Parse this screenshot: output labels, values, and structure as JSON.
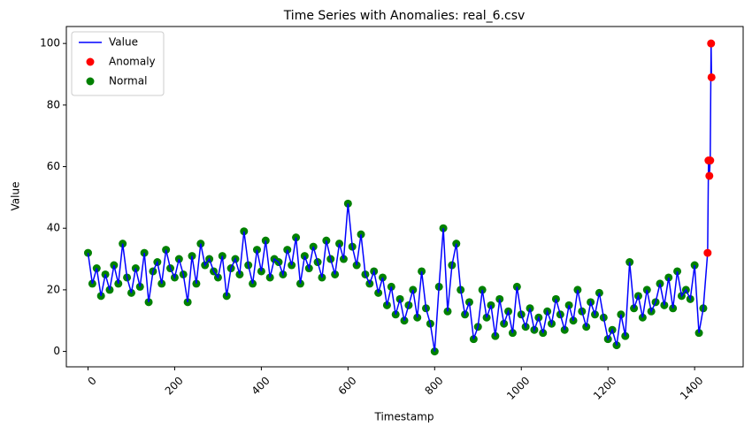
{
  "chart_data": {
    "type": "line",
    "title": "Time Series with Anomalies: real_6.csv",
    "x_label": "Timestamp",
    "y_label": "Value",
    "xlim": [
      -50,
      1512
    ],
    "ylim": [
      -5,
      105.5
    ],
    "xticks": [
      0,
      200,
      400,
      600,
      800,
      1000,
      1200,
      1400
    ],
    "yticks": [
      0,
      20,
      40,
      60,
      80,
      100
    ],
    "legend": "upper left",
    "series": [
      {
        "name": "Value",
        "type": "line",
        "color": "#0000ff",
        "x": [
          0,
          10,
          20,
          30,
          40,
          50,
          60,
          70,
          80,
          90,
          100,
          110,
          120,
          130,
          140,
          150,
          160,
          170,
          180,
          190,
          200,
          210,
          220,
          230,
          240,
          250,
          260,
          270,
          280,
          290,
          300,
          310,
          320,
          330,
          340,
          350,
          360,
          370,
          380,
          390,
          400,
          410,
          420,
          430,
          440,
          450,
          460,
          470,
          480,
          490,
          500,
          510,
          520,
          530,
          540,
          550,
          560,
          570,
          580,
          590,
          600,
          610,
          620,
          630,
          640,
          650,
          660,
          670,
          680,
          690,
          700,
          710,
          720,
          730,
          740,
          750,
          760,
          770,
          780,
          790,
          800,
          810,
          820,
          830,
          840,
          850,
          860,
          870,
          880,
          890,
          900,
          910,
          920,
          930,
          940,
          950,
          960,
          970,
          980,
          990,
          1000,
          1010,
          1020,
          1030,
          1040,
          1050,
          1060,
          1070,
          1080,
          1090,
          1100,
          1110,
          1120,
          1130,
          1140,
          1150,
          1160,
          1170,
          1180,
          1190,
          1200,
          1210,
          1220,
          1230,
          1240,
          1250,
          1260,
          1270,
          1280,
          1290,
          1300,
          1310,
          1320,
          1330,
          1340,
          1350,
          1360,
          1370,
          1380,
          1390,
          1400,
          1410,
          1420,
          1430,
          1432,
          1434,
          1436,
          1438,
          1439
        ],
        "values": [
          32,
          22,
          27,
          18,
          25,
          20,
          28,
          22,
          35,
          24,
          19,
          27,
          21,
          32,
          16,
          26,
          29,
          22,
          33,
          27,
          24,
          30,
          25,
          16,
          31,
          22,
          35,
          28,
          30,
          26,
          24,
          31,
          18,
          27,
          30,
          25,
          39,
          28,
          22,
          33,
          26,
          36,
          24,
          30,
          29,
          25,
          33,
          28,
          37,
          22,
          31,
          27,
          34,
          29,
          24,
          36,
          30,
          25,
          35,
          30,
          48,
          34,
          28,
          38,
          25,
          22,
          26,
          19,
          24,
          15,
          21,
          12,
          17,
          10,
          15,
          20,
          11,
          26,
          14,
          9,
          0,
          21,
          40,
          13,
          28,
          35,
          20,
          12,
          16,
          4,
          8,
          20,
          11,
          15,
          5,
          17,
          9,
          13,
          6,
          21,
          12,
          8,
          14,
          7,
          11,
          6,
          13,
          9,
          17,
          12,
          7,
          15,
          10,
          20,
          13,
          8,
          16,
          12,
          19,
          11,
          4,
          7,
          2,
          12,
          5,
          29,
          14,
          18,
          11,
          20,
          13,
          16,
          22,
          15,
          24,
          14,
          26,
          18,
          20,
          17,
          28,
          6,
          14,
          32,
          62,
          57,
          62,
          100,
          89
        ]
      },
      {
        "name": "Anomaly",
        "type": "scatter",
        "color": "#ff0000",
        "x": [
          1430,
          1432,
          1434,
          1436,
          1438,
          1439
        ],
        "values": [
          32,
          62,
          57,
          62,
          100,
          89
        ]
      },
      {
        "name": "Normal",
        "type": "scatter",
        "color": "#008000",
        "x": [
          0,
          10,
          20,
          30,
          40,
          50,
          60,
          70,
          80,
          90,
          100,
          110,
          120,
          130,
          140,
          150,
          160,
          170,
          180,
          190,
          200,
          210,
          220,
          230,
          240,
          250,
          260,
          270,
          280,
          290,
          300,
          310,
          320,
          330,
          340,
          350,
          360,
          370,
          380,
          390,
          400,
          410,
          420,
          430,
          440,
          450,
          460,
          470,
          480,
          490,
          500,
          510,
          520,
          530,
          540,
          550,
          560,
          570,
          580,
          590,
          600,
          610,
          620,
          630,
          640,
          650,
          660,
          670,
          680,
          690,
          700,
          710,
          720,
          730,
          740,
          750,
          760,
          770,
          780,
          790,
          800,
          810,
          820,
          830,
          840,
          850,
          860,
          870,
          880,
          890,
          900,
          910,
          920,
          930,
          940,
          950,
          960,
          970,
          980,
          990,
          1000,
          1010,
          1020,
          1030,
          1040,
          1050,
          1060,
          1070,
          1080,
          1090,
          1100,
          1110,
          1120,
          1130,
          1140,
          1150,
          1160,
          1170,
          1180,
          1190,
          1200,
          1210,
          1220,
          1230,
          1240,
          1250,
          1260,
          1270,
          1280,
          1290,
          1300,
          1310,
          1320,
          1330,
          1340,
          1350,
          1360,
          1370,
          1380,
          1390,
          1400,
          1410,
          1420
        ],
        "values": [
          32,
          22,
          27,
          18,
          25,
          20,
          28,
          22,
          35,
          24,
          19,
          27,
          21,
          32,
          16,
          26,
          29,
          22,
          33,
          27,
          24,
          30,
          25,
          16,
          31,
          22,
          35,
          28,
          30,
          26,
          24,
          31,
          18,
          27,
          30,
          25,
          39,
          28,
          22,
          33,
          26,
          36,
          24,
          30,
          29,
          25,
          33,
          28,
          37,
          22,
          31,
          27,
          34,
          29,
          24,
          36,
          30,
          25,
          35,
          30,
          48,
          34,
          28,
          38,
          25,
          22,
          26,
          19,
          24,
          15,
          21,
          12,
          17,
          10,
          15,
          20,
          11,
          26,
          14,
          9,
          0,
          21,
          40,
          13,
          28,
          35,
          20,
          12,
          16,
          4,
          8,
          20,
          11,
          15,
          5,
          17,
          9,
          13,
          6,
          21,
          12,
          8,
          14,
          7,
          11,
          6,
          13,
          9,
          17,
          12,
          7,
          15,
          10,
          20,
          13,
          8,
          16,
          12,
          19,
          11,
          4,
          7,
          2,
          12,
          5,
          29,
          14,
          18,
          11,
          20,
          13,
          16,
          22,
          15,
          24,
          14,
          26,
          18,
          20,
          17,
          28,
          6,
          14
        ]
      }
    ]
  }
}
